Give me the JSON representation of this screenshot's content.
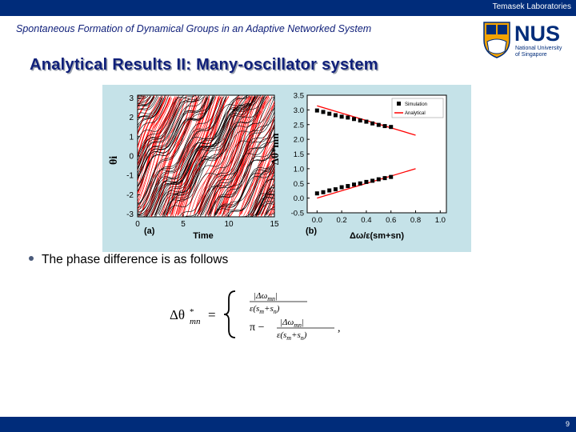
{
  "header": {
    "lab_name": "Temasek Laboratories",
    "bar_color": "#002c7a"
  },
  "subtitle": "Spontaneous Formation of Dynamical Groups in an Adaptive Networked System",
  "logo": {
    "name": "NUS",
    "line1": "National University",
    "line2": "of Singapore"
  },
  "heading": "Analytical Results II: Many-oscillator system",
  "bullet": "The  phase difference is as follows",
  "footer": {
    "page": "9"
  },
  "chart_data": [
    {
      "type": "line",
      "panel_label": "(a)",
      "xlabel": "Time",
      "ylabel": "θi",
      "xticks": [
        "0",
        "5",
        "10",
        "15"
      ],
      "yticks": [
        "3",
        "2",
        "1",
        "0",
        "-1",
        "-2",
        "-3"
      ],
      "xlim": [
        0,
        15
      ],
      "ylim": [
        -3.14,
        3.14
      ],
      "series": [
        {
          "color": "#000000",
          "values": "phase trajectories wrapping at ±π"
        },
        {
          "color": "#ff0000",
          "values": "phase trajectories wrapping at ±π"
        }
      ]
    },
    {
      "type": "scatter",
      "panel_label": "(b)",
      "xlabel": "Δω/ε(sm+sn)",
      "ylabel": "Δθ*mn",
      "xticks": [
        "0.0",
        "0.2",
        "0.4",
        "0.6",
        "0.8",
        "1.0"
      ],
      "yticks": [
        "3.5",
        "3.0",
        "2.5",
        "2.0",
        "1.5",
        "1.0",
        "0.5",
        "0.0",
        "-0.5"
      ],
      "xlim": [
        -0.08,
        1.05
      ],
      "ylim": [
        -0.5,
        3.5
      ],
      "legend": [
        "Simulation",
        "Analytical"
      ],
      "series": [
        {
          "name": "Simulation",
          "color": "#000000",
          "points": [
            [
              0.0,
              2.98
            ],
            [
              0.05,
              2.93
            ],
            [
              0.1,
              2.87
            ],
            [
              0.15,
              2.82
            ],
            [
              0.2,
              2.77
            ],
            [
              0.25,
              2.74
            ],
            [
              0.3,
              2.69
            ],
            [
              0.35,
              2.64
            ],
            [
              0.4,
              2.6
            ],
            [
              0.45,
              2.54
            ],
            [
              0.5,
              2.49
            ],
            [
              0.55,
              2.45
            ],
            [
              0.6,
              2.42
            ],
            [
              0.0,
              0.16
            ],
            [
              0.05,
              0.2
            ],
            [
              0.1,
              0.26
            ],
            [
              0.15,
              0.3
            ],
            [
              0.2,
              0.37
            ],
            [
              0.25,
              0.41
            ],
            [
              0.3,
              0.46
            ],
            [
              0.35,
              0.5
            ],
            [
              0.4,
              0.55
            ],
            [
              0.45,
              0.59
            ],
            [
              0.5,
              0.64
            ],
            [
              0.55,
              0.68
            ],
            [
              0.6,
              0.72
            ]
          ]
        },
        {
          "name": "Analytical",
          "color": "#ff0000",
          "lines": [
            [
              [
                0.0,
                3.14
              ],
              [
                0.8,
                2.14
              ]
            ],
            [
              [
                0.0,
                0.0
              ],
              [
                0.8,
                1.0
              ]
            ]
          ]
        }
      ]
    }
  ]
}
